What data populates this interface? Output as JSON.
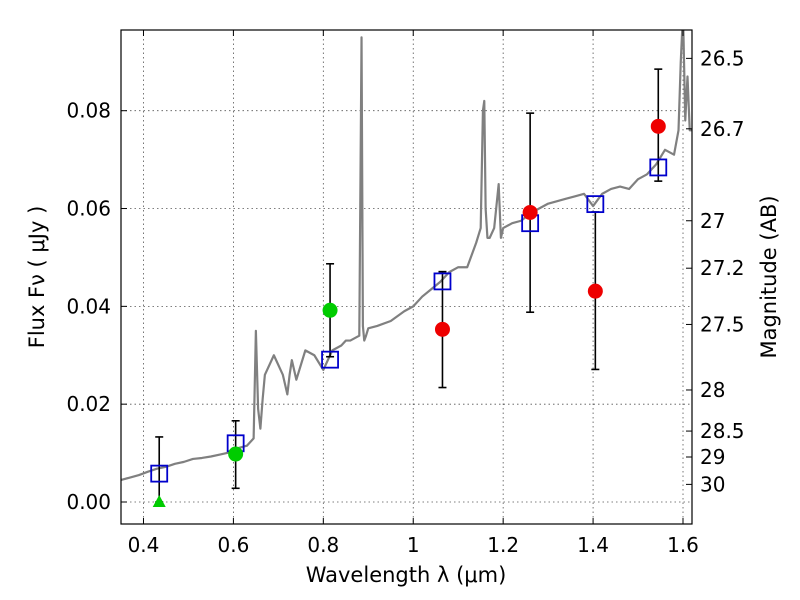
{
  "chart_data": {
    "type": "scatter",
    "title": "",
    "xlabel": "Wavelength  λ (μm)",
    "ylabel": "Flux  Fν  ( μJy )",
    "ylabel_right": "Magnitude (AB)",
    "xlim": [
      0.35,
      1.62
    ],
    "ylim": [
      -0.0045,
      0.0965
    ],
    "grid": true,
    "x_ticks": [
      {
        "value": 0.4,
        "label": "0.4"
      },
      {
        "value": 0.6,
        "label": "0.6"
      },
      {
        "value": 0.8,
        "label": "0.8"
      },
      {
        "value": 1.0,
        "label": "1"
      },
      {
        "value": 1.2,
        "label": "1.2"
      },
      {
        "value": 1.4,
        "label": "1.4"
      },
      {
        "value": 1.6,
        "label": "1.6"
      }
    ],
    "y_ticks": [
      {
        "value": 0.0,
        "label": "0.00"
      },
      {
        "value": 0.02,
        "label": "0.02"
      },
      {
        "value": 0.04,
        "label": "0.04"
      },
      {
        "value": 0.06,
        "label": "0.06"
      },
      {
        "value": 0.08,
        "label": "0.08"
      }
    ],
    "magnitude_ticks": [
      {
        "flux": 0.0907,
        "label": "26.5"
      },
      {
        "flux": 0.0763,
        "label": "26.7"
      },
      {
        "flux": 0.0575,
        "label": "27"
      },
      {
        "flux": 0.0478,
        "label": "27.2"
      },
      {
        "flux": 0.0363,
        "label": "27.5"
      },
      {
        "flux": 0.0229,
        "label": "28"
      },
      {
        "flux": 0.0145,
        "label": "28.5"
      },
      {
        "flux": 0.0092,
        "label": "29"
      },
      {
        "flux": 0.0036,
        "label": "30"
      }
    ],
    "colors": {
      "spectrum": "#808080",
      "model_points": "#0000cc",
      "detections": "#ee0000",
      "green_points": "#00cc00",
      "errorbar": "#000000",
      "grid": "#555555"
    },
    "series": [
      {
        "marker": "open-square",
        "color": "#0000cc",
        "points": [
          {
            "x": 0.435,
            "y": 0.0058
          },
          {
            "x": 0.605,
            "y": 0.012
          },
          {
            "x": 0.815,
            "y": 0.0291
          },
          {
            "x": 1.065,
            "y": 0.0451
          },
          {
            "x": 1.26,
            "y": 0.057
          },
          {
            "x": 1.405,
            "y": 0.0609
          },
          {
            "x": 1.545,
            "y": 0.0684
          }
        ]
      },
      {
        "marker": "filled-circle",
        "color": "#00cc00",
        "points": [
          {
            "x": 0.605,
            "y": 0.0098,
            "yerr_low": 0.007,
            "yerr_high": 0.0068
          },
          {
            "x": 0.815,
            "y": 0.0392,
            "yerr_low": 0.0095,
            "yerr_high": 0.0095
          }
        ]
      },
      {
        "marker": "filled-triangle",
        "color": "#00cc00",
        "points": [
          {
            "x": 0.435,
            "y": 0.0,
            "yerr_low": 0.0,
            "yerr_high": 0.0133
          }
        ]
      },
      {
        "marker": "filled-circle",
        "color": "#ee0000",
        "points": [
          {
            "x": 1.065,
            "y": 0.0353,
            "yerr_low": 0.0119,
            "yerr_high": 0.0118
          },
          {
            "x": 1.26,
            "y": 0.0592,
            "yerr_low": 0.0204,
            "yerr_high": 0.0203
          },
          {
            "x": 1.405,
            "y": 0.0431,
            "yerr_low": 0.016,
            "yerr_high": 0.0162
          },
          {
            "x": 1.545,
            "y": 0.0768,
            "yerr_low": 0.0112,
            "yerr_high": 0.0117
          }
        ]
      }
    ],
    "spectrum": {
      "x": [
        0.35,
        0.37,
        0.39,
        0.41,
        0.43,
        0.45,
        0.47,
        0.49,
        0.51,
        0.53,
        0.55,
        0.57,
        0.59,
        0.61,
        0.63,
        0.645,
        0.65,
        0.655,
        0.66,
        0.665,
        0.67,
        0.69,
        0.71,
        0.72,
        0.725,
        0.73,
        0.74,
        0.76,
        0.78,
        0.8,
        0.82,
        0.84,
        0.85,
        0.86,
        0.88,
        0.885,
        0.888,
        0.891,
        0.895,
        0.9,
        0.92,
        0.95,
        0.98,
        1.0,
        1.02,
        1.04,
        1.06,
        1.08,
        1.1,
        1.12,
        1.14,
        1.15,
        1.155,
        1.158,
        1.161,
        1.165,
        1.17,
        1.18,
        1.19,
        1.195,
        1.2,
        1.22,
        1.24,
        1.26,
        1.28,
        1.3,
        1.32,
        1.34,
        1.36,
        1.38,
        1.4,
        1.42,
        1.44,
        1.46,
        1.48,
        1.5,
        1.52,
        1.54,
        1.56,
        1.58,
        1.59,
        1.595,
        1.6,
        1.605,
        1.61,
        1.615,
        1.62
      ],
      "y": [
        0.0045,
        0.005,
        0.0055,
        0.0062,
        0.0068,
        0.0072,
        0.0078,
        0.0082,
        0.0088,
        0.009,
        0.0093,
        0.0097,
        0.0101,
        0.011,
        0.0115,
        0.013,
        0.035,
        0.019,
        0.015,
        0.021,
        0.026,
        0.03,
        0.026,
        0.022,
        0.026,
        0.029,
        0.025,
        0.031,
        0.03,
        0.027,
        0.031,
        0.032,
        0.033,
        0.033,
        0.034,
        0.095,
        0.036,
        0.033,
        0.034,
        0.0355,
        0.036,
        0.037,
        0.039,
        0.04,
        0.042,
        0.0435,
        0.045,
        0.047,
        0.048,
        0.048,
        0.053,
        0.056,
        0.08,
        0.082,
        0.06,
        0.054,
        0.054,
        0.056,
        0.065,
        0.054,
        0.056,
        0.057,
        0.0575,
        0.059,
        0.06,
        0.061,
        0.0615,
        0.062,
        0.0625,
        0.063,
        0.0605,
        0.063,
        0.064,
        0.0645,
        0.064,
        0.066,
        0.067,
        0.069,
        0.072,
        0.071,
        0.076,
        0.09,
        0.1,
        0.078,
        0.087,
        0.076,
        0.076
      ]
    }
  }
}
